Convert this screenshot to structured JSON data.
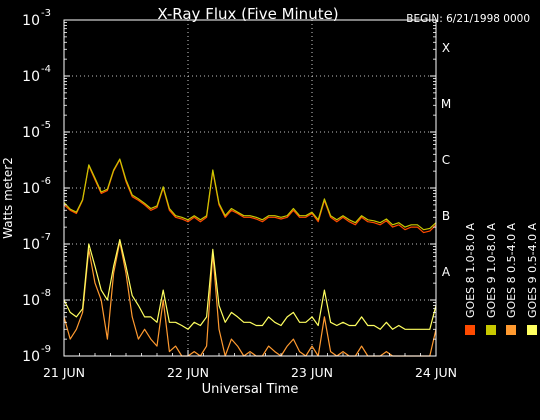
{
  "chart_data": {
    "type": "line",
    "title": "X-Ray Flux (Five Minute)",
    "subtitle": "BEGIN: 6/21/1998 0000",
    "xlabel": "Universal Time",
    "ylabel": "Watts meter2",
    "y_scale": "log",
    "ylim": [
      1e-09,
      0.001
    ],
    "y_ticks": [
      {
        "base": "10",
        "exp": "-9",
        "value": 1e-09
      },
      {
        "base": "10",
        "exp": "-8",
        "value": 1e-08
      },
      {
        "base": "10",
        "exp": "-7",
        "value": 1e-07
      },
      {
        "base": "10",
        "exp": "-6",
        "value": 1e-06
      },
      {
        "base": "10",
        "exp": "-5",
        "value": 1e-05
      },
      {
        "base": "10",
        "exp": "-4",
        "value": 0.0001
      },
      {
        "base": "10",
        "exp": "-3",
        "value": 0.001
      }
    ],
    "x_ticks": [
      "21 JUN",
      "22 JUN",
      "23 JUN",
      "24 JUN"
    ],
    "x_range_days": [
      0,
      3
    ],
    "flare_classes": [
      {
        "label": "X",
        "value": 0.0001
      },
      {
        "label": "M",
        "value": 1e-05
      },
      {
        "label": "C",
        "value": 1e-06
      },
      {
        "label": "B",
        "value": 1e-07
      },
      {
        "label": "A",
        "value": 1e-08
      }
    ],
    "grid": true,
    "legend_position": "right",
    "series": [
      {
        "name": "GOES 8 1.0-8.0 A",
        "color": "#ff4a00",
        "x": [
          0,
          0.05,
          0.1,
          0.15,
          0.2,
          0.25,
          0.3,
          0.35,
          0.4,
          0.45,
          0.5,
          0.55,
          0.6,
          0.65,
          0.7,
          0.75,
          0.8,
          0.85,
          0.9,
          0.95,
          1.0,
          1.05,
          1.1,
          1.15,
          1.2,
          1.25,
          1.3,
          1.35,
          1.4,
          1.45,
          1.5,
          1.55,
          1.6,
          1.65,
          1.7,
          1.75,
          1.8,
          1.85,
          1.9,
          1.95,
          2.0,
          2.05,
          2.1,
          2.15,
          2.2,
          2.25,
          2.3,
          2.35,
          2.4,
          2.45,
          2.5,
          2.55,
          2.6,
          2.65,
          2.7,
          2.75,
          2.8,
          2.85,
          2.9,
          2.95,
          3.0
        ],
        "values": [
          5e-07,
          4e-07,
          3.5e-07,
          6e-07,
          2.5e-06,
          1.4e-06,
          8e-07,
          9e-07,
          2e-06,
          3.2e-06,
          1.3e-06,
          7e-07,
          6e-07,
          5e-07,
          4e-07,
          4.5e-07,
          1e-06,
          4e-07,
          3e-07,
          2.8e-07,
          2.5e-07,
          3e-07,
          2.5e-07,
          3e-07,
          2e-06,
          5e-07,
          3e-07,
          4e-07,
          3.5e-07,
          3e-07,
          3e-07,
          2.8e-07,
          2.5e-07,
          3e-07,
          3e-07,
          2.8e-07,
          3e-07,
          4e-07,
          3e-07,
          3e-07,
          3.5e-07,
          2.5e-07,
          6e-07,
          3e-07,
          2.5e-07,
          3e-07,
          2.5e-07,
          2.2e-07,
          3e-07,
          2.5e-07,
          2.4e-07,
          2.2e-07,
          2.6e-07,
          2e-07,
          2.2e-07,
          1.8e-07,
          2e-07,
          2e-07,
          1.6e-07,
          1.7e-07,
          2.2e-07
        ]
      },
      {
        "name": "GOES 8 0.5-4.0 A",
        "color": "#ff9a30",
        "x": [
          0,
          0.05,
          0.1,
          0.15,
          0.2,
          0.25,
          0.3,
          0.35,
          0.4,
          0.45,
          0.5,
          0.55,
          0.6,
          0.65,
          0.7,
          0.75,
          0.8,
          0.85,
          0.9,
          0.95,
          1.0,
          1.05,
          1.1,
          1.15,
          1.2,
          1.25,
          1.3,
          1.35,
          1.4,
          1.45,
          1.5,
          1.55,
          1.6,
          1.65,
          1.7,
          1.75,
          1.8,
          1.85,
          1.9,
          1.95,
          2.0,
          2.05,
          2.1,
          2.15,
          2.2,
          2.25,
          2.3,
          2.35,
          2.4,
          2.45,
          2.5,
          2.55,
          2.6,
          2.65,
          2.7,
          2.75,
          2.8,
          2.85,
          2.9,
          2.95,
          3.0
        ],
        "values": [
          5e-09,
          2e-09,
          3e-09,
          6e-09,
          8e-08,
          2e-08,
          1e-08,
          2e-09,
          3e-08,
          1.1e-07,
          3e-08,
          5e-09,
          2e-09,
          3e-09,
          2e-09,
          1.5e-09,
          1e-08,
          1.2e-09,
          1.5e-09,
          1e-09,
          1e-09,
          1.2e-09,
          1e-09,
          1.5e-09,
          7e-08,
          3e-09,
          1e-09,
          2e-09,
          1.5e-09,
          1e-09,
          1.2e-09,
          1e-09,
          1e-09,
          1.5e-09,
          1.2e-09,
          1e-09,
          1.5e-09,
          2e-09,
          1.2e-09,
          1e-09,
          1.5e-09,
          1e-09,
          5e-09,
          1.2e-09,
          1e-09,
          1.2e-09,
          1e-09,
          1e-09,
          1.5e-09,
          1e-09,
          1e-09,
          1e-09,
          1.2e-09,
          1e-09,
          1e-09,
          1e-09,
          1e-09,
          1e-09,
          1e-09,
          1e-09,
          3e-09
        ]
      },
      {
        "name": "GOES 9 0.5-4.0 A",
        "color": "#ffff60",
        "x": [
          0,
          0.05,
          0.1,
          0.15,
          0.2,
          0.25,
          0.3,
          0.35,
          0.4,
          0.45,
          0.5,
          0.55,
          0.6,
          0.65,
          0.7,
          0.75,
          0.8,
          0.85,
          0.9,
          0.95,
          1.0,
          1.05,
          1.1,
          1.15,
          1.2,
          1.25,
          1.3,
          1.35,
          1.4,
          1.45,
          1.5,
          1.55,
          1.6,
          1.65,
          1.7,
          1.75,
          1.8,
          1.85,
          1.9,
          1.95,
          2.0,
          2.05,
          2.1,
          2.15,
          2.2,
          2.25,
          2.3,
          2.35,
          2.4,
          2.45,
          2.5,
          2.55,
          2.6,
          2.65,
          2.7,
          2.75,
          2.8,
          2.85,
          2.9,
          2.95,
          3.0
        ],
        "values": [
          1e-08,
          6e-09,
          5e-09,
          7e-09,
          1e-07,
          4e-08,
          1.5e-08,
          1e-08,
          4e-08,
          1.2e-07,
          4e-08,
          1.2e-08,
          8e-09,
          5e-09,
          5e-09,
          4e-09,
          1.5e-08,
          4e-09,
          4e-09,
          3.5e-09,
          3e-09,
          4e-09,
          3.5e-09,
          5e-09,
          8e-08,
          8e-09,
          4e-09,
          6e-09,
          5e-09,
          4e-09,
          4e-09,
          3.5e-09,
          3.5e-09,
          5e-09,
          4e-09,
          3.5e-09,
          5e-09,
          6e-09,
          4e-09,
          4e-09,
          5e-09,
          3.5e-09,
          1.5e-08,
          4e-09,
          3.5e-09,
          4e-09,
          3.5e-09,
          3.5e-09,
          5e-09,
          3.5e-09,
          3.5e-09,
          3e-09,
          4e-09,
          3e-09,
          3.5e-09,
          3e-09,
          3e-09,
          3e-09,
          3e-09,
          3e-09,
          8e-09
        ]
      },
      {
        "name": "GOES 9 1.0-8.0 A",
        "color": "#c8c800",
        "x": [
          0,
          0.05,
          0.1,
          0.15,
          0.2,
          0.25,
          0.3,
          0.35,
          0.4,
          0.45,
          0.5,
          0.55,
          0.6,
          0.65,
          0.7,
          0.75,
          0.8,
          0.85,
          0.9,
          0.95,
          1.0,
          1.05,
          1.1,
          1.15,
          1.2,
          1.25,
          1.3,
          1.35,
          1.4,
          1.45,
          1.5,
          1.55,
          1.6,
          1.65,
          1.7,
          1.75,
          1.8,
          1.85,
          1.9,
          1.95,
          2.0,
          2.05,
          2.1,
          2.15,
          2.2,
          2.25,
          2.3,
          2.35,
          2.4,
          2.45,
          2.5,
          2.55,
          2.6,
          2.65,
          2.7,
          2.75,
          2.8,
          2.85,
          2.9,
          2.95,
          3.0
        ],
        "values": [
          5.5e-07,
          4.2e-07,
          3.7e-07,
          6.2e-07,
          2.6e-06,
          1.5e-06,
          8.5e-07,
          9.5e-07,
          2.1e-06,
          3.3e-06,
          1.4e-06,
          7.5e-07,
          6.4e-07,
          5.3e-07,
          4.3e-07,
          4.8e-07,
          1.05e-06,
          4.3e-07,
          3.2e-07,
          3e-07,
          2.7e-07,
          3.2e-07,
          2.7e-07,
          3.2e-07,
          2.1e-06,
          5.3e-07,
          3.2e-07,
          4.3e-07,
          3.7e-07,
          3.2e-07,
          3.2e-07,
          3e-07,
          2.7e-07,
          3.2e-07,
          3.2e-07,
          3e-07,
          3.2e-07,
          4.3e-07,
          3.2e-07,
          3.2e-07,
          3.7e-07,
          2.7e-07,
          6.4e-07,
          3.2e-07,
          2.7e-07,
          3.2e-07,
          2.7e-07,
          2.4e-07,
          3.2e-07,
          2.7e-07,
          2.6e-07,
          2.4e-07,
          2.8e-07,
          2.2e-07,
          2.4e-07,
          2e-07,
          2.2e-07,
          2.2e-07,
          1.8e-07,
          1.9e-07,
          2.4e-07
        ]
      }
    ]
  }
}
